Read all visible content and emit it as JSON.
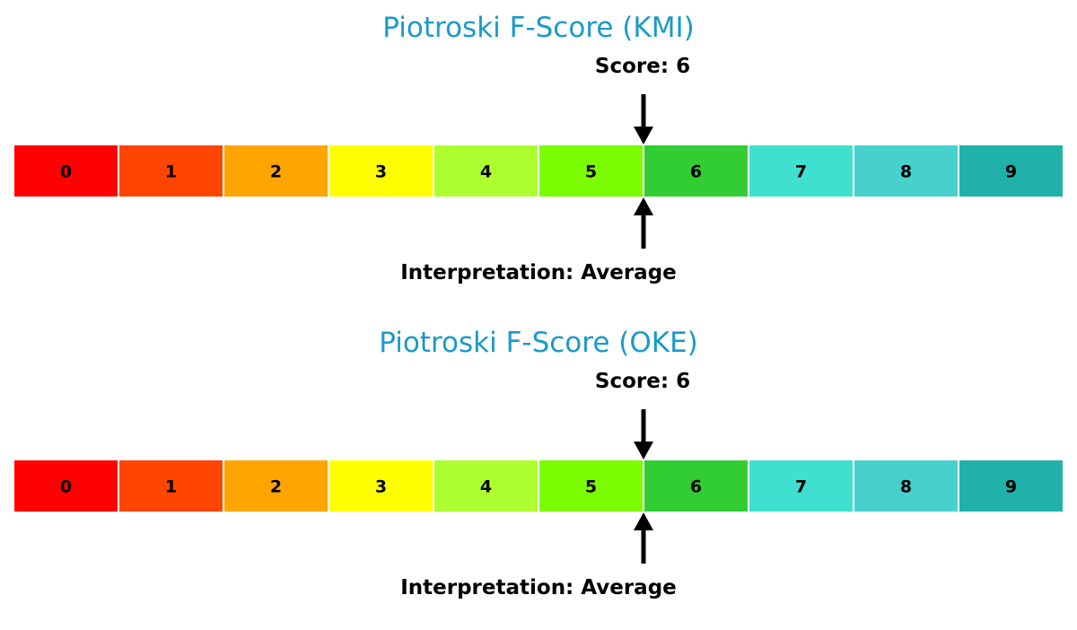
{
  "chart_data": [
    {
      "type": "gauge",
      "title": "Piotroski F-Score (KMI)",
      "score_label": "Score: 6",
      "interpretation_label": "Interpretation: Average",
      "value": 6,
      "categories": [
        "0",
        "1",
        "2",
        "3",
        "4",
        "5",
        "6",
        "7",
        "8",
        "9"
      ],
      "colors": [
        "#ff0000",
        "#ff4500",
        "#ffa500",
        "#ffff00",
        "#adff2f",
        "#7cfc00",
        "#32cd32",
        "#40e0d0",
        "#48d1cc",
        "#20b2aa"
      ]
    },
    {
      "type": "gauge",
      "title": "Piotroski F-Score (OKE)",
      "score_label": "Score: 6",
      "interpretation_label": "Interpretation: Average",
      "value": 6,
      "categories": [
        "0",
        "1",
        "2",
        "3",
        "4",
        "5",
        "6",
        "7",
        "8",
        "9"
      ],
      "colors": [
        "#ff0000",
        "#ff4500",
        "#ffa500",
        "#ffff00",
        "#adff2f",
        "#7cfc00",
        "#32cd32",
        "#40e0d0",
        "#48d1cc",
        "#20b2aa"
      ]
    }
  ]
}
